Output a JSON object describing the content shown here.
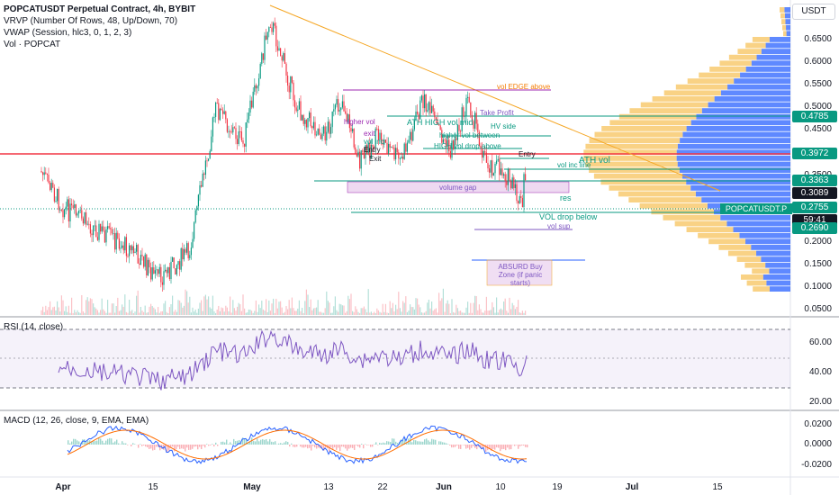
{
  "chart": {
    "title": "POPCATUSDT Perpetual Contract, 4h, BYBIT",
    "indicators": [
      "VRVP (Number Of Rows, 48, Up/Down, 70)",
      "VWAP (Session, hlc3, 0, 1, 2, 3)",
      "Vol · POPCAT"
    ],
    "currency": "USDT",
    "symbol_tag": "POPCATUSDT.P",
    "countdown": "59:41"
  },
  "price_axis": [
    "0.6500",
    "0.6000",
    "0.5500",
    "0.5000",
    "0.4500",
    "0.3500",
    "0.2000",
    "0.1500",
    "0.1000",
    "0.0500"
  ],
  "price_tags": [
    {
      "value": "0.4785",
      "color": "#089981"
    },
    {
      "value": "0.3972",
      "color": "#089981"
    },
    {
      "value": "0.3363",
      "color": "#089981"
    },
    {
      "value": "0.3089",
      "color": "#131722"
    },
    {
      "value": "0.2755",
      "color": "#089981"
    },
    {
      "value": "0.2690",
      "color": "#089981"
    }
  ],
  "annotations": [
    {
      "text": "vol EDGE above",
      "color": "#f57c00"
    },
    {
      "text": "Take Profit",
      "color": "#7e57c2"
    },
    {
      "text": "ATH HIGH vol mid",
      "color": "#089981"
    },
    {
      "text": "HV side",
      "color": "#089981"
    },
    {
      "text": "higher vol",
      "color": "#9c27b0"
    },
    {
      "text": "higher vol between",
      "color": "#089981"
    },
    {
      "text": "exit",
      "color": "#9c27b0"
    },
    {
      "text": "vol inc",
      "color": "#089981"
    },
    {
      "text": "HIGH vol drop above",
      "color": "#089981"
    },
    {
      "text": "Entry",
      "color": "#131722"
    },
    {
      "text": "Entry",
      "color": "#131722"
    },
    {
      "text": "Exit",
      "color": "#131722"
    },
    {
      "text": "ATH vol",
      "color": "#089981"
    },
    {
      "text": "vol inc line",
      "color": "#089981"
    },
    {
      "text": "volume gap",
      "color": "#7e57c2"
    },
    {
      "text": "res",
      "color": "#089981"
    },
    {
      "text": "VOL drop below",
      "color": "#089981"
    },
    {
      "text": "vol sup",
      "color": "#7e57c2"
    },
    {
      "text": "ABSURD Buy Zone (if panic starts)",
      "color": "#7e57c2"
    }
  ],
  "rsi": {
    "title": "RSI (14, close)",
    "axis": [
      "60.00",
      "40.00",
      "20.00"
    ]
  },
  "macd": {
    "title": "MACD (12, 26, close, 9, EMA, EMA)",
    "axis": [
      "0.0200",
      "0.0000",
      "-0.0200"
    ]
  },
  "time_axis": [
    "Apr",
    "15",
    "May",
    "13",
    "22",
    "Jun",
    "10",
    "19",
    "Jul",
    "15"
  ],
  "colors": {
    "up": "#089981",
    "down": "#f23645",
    "rsi": "#7e57c2",
    "macd": "#2962ff",
    "signal": "#ff6d00",
    "vrvp_up": "#2962ff",
    "vrvp_down": "#f7c35c"
  }
}
